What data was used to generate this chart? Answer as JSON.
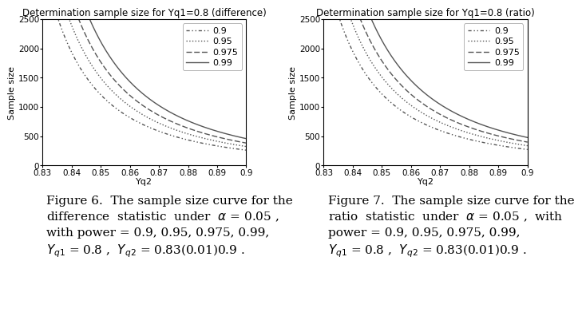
{
  "title_left": "Determination sample size for Yq1=0.8 (difference)",
  "title_right": "Determination sample size for Yq1=0.8 (ratio)",
  "xlabel": "Yq2",
  "ylabel": "Sample size",
  "x_ticks": [
    0.83,
    0.84,
    0.85,
    0.86,
    0.87,
    0.88,
    0.89,
    0.9
  ],
  "ylim": [
    0,
    2500
  ],
  "yticks": [
    0,
    500,
    1000,
    1500,
    2000,
    2500
  ],
  "xlim": [
    0.83,
    0.9
  ],
  "powers": [
    0.9,
    0.95,
    0.975,
    0.99
  ],
  "line_color": "#555555",
  "legend_labels": [
    "0.9",
    "0.95",
    "0.975",
    "0.99"
  ],
  "fig_background": "#ffffff",
  "title_fontsize": 8.5,
  "label_fontsize": 8,
  "tick_fontsize": 7.5,
  "legend_fontsize": 8,
  "caption_fontsize": 11
}
